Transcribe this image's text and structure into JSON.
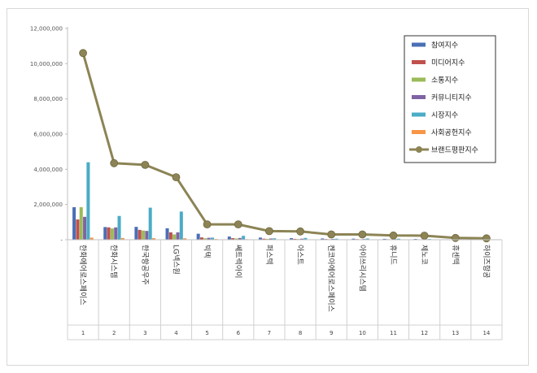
{
  "chart_data": {
    "type": "bar",
    "title": "",
    "xlabel": "",
    "ylabel": "",
    "ylim": [
      0,
      12000000
    ],
    "yticks": [
      "-",
      "2,000,000",
      "4,000,000",
      "6,000,000",
      "8,000,000",
      "10,000,000",
      "12,000,000"
    ],
    "grid": false,
    "legend_position": "top-right",
    "ranks": [
      "1",
      "2",
      "3",
      "4",
      "5",
      "6",
      "7",
      "8",
      "9",
      "10",
      "11",
      "12",
      "13",
      "14"
    ],
    "categories": [
      "한화에어로스페이스",
      "한화시스템",
      "한국항공우주",
      "LG넥스원",
      "빅텍",
      "쎄트렉아이",
      "퍼스텍",
      "아스트",
      "켄코아에어로스페이스",
      "아이쓰리시스템",
      "휴니드",
      "제노코",
      "휴센텍",
      "하이즈항공"
    ],
    "series": [
      {
        "name": "참여지수",
        "color": "#4a6fb5",
        "kind": "bar",
        "values": [
          1850000,
          720000,
          730000,
          650000,
          340000,
          180000,
          120000,
          90000,
          70000,
          60000,
          50000,
          45000,
          25000,
          20000
        ]
      },
      {
        "name": "미디어지수",
        "color": "#c0504d",
        "kind": "bar",
        "values": [
          1150000,
          700000,
          560000,
          420000,
          130000,
          90000,
          60000,
          50000,
          40000,
          35000,
          30000,
          25000,
          15000,
          12000
        ]
      },
      {
        "name": "소통지수",
        "color": "#9bbb59",
        "kind": "bar",
        "values": [
          1850000,
          640000,
          520000,
          300000,
          80000,
          70000,
          50000,
          40000,
          30000,
          25000,
          20000,
          20000,
          10000,
          8000
        ]
      },
      {
        "name": "커뮤니티지수",
        "color": "#8064a2",
        "kind": "bar",
        "values": [
          1300000,
          700000,
          500000,
          420000,
          110000,
          100000,
          70000,
          60000,
          45000,
          40000,
          35000,
          30000,
          20000,
          15000
        ]
      },
      {
        "name": "시장지수",
        "color": "#4bacc6",
        "kind": "bar",
        "values": [
          4400000,
          1350000,
          1820000,
          1600000,
          120000,
          220000,
          80000,
          100000,
          60000,
          70000,
          60000,
          40000,
          30000,
          20000
        ]
      },
      {
        "name": "사회공헌지수",
        "color": "#f79646",
        "kind": "bar",
        "values": [
          120000,
          100000,
          90000,
          80000,
          40000,
          30000,
          20000,
          20000,
          15000,
          15000,
          10000,
          10000,
          5000,
          5000
        ]
      },
      {
        "name": "브랜드평판지수",
        "color": "#8c8455",
        "kind": "line",
        "values": [
          10600000,
          4350000,
          4250000,
          3550000,
          870000,
          870000,
          490000,
          470000,
          300000,
          300000,
          240000,
          230000,
          100000,
          80000
        ]
      }
    ]
  }
}
